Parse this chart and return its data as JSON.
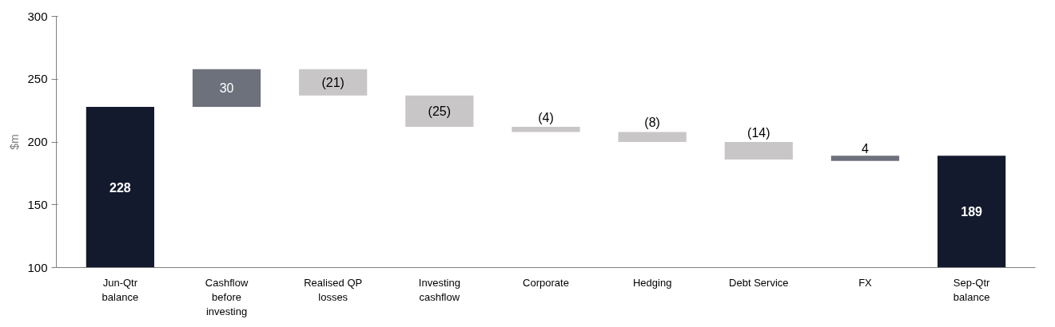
{
  "chart_data": {
    "type": "bar",
    "ylabel": "$m",
    "categories": [
      "Jun-Qtr\nbalance",
      "Cashflow\nbefore\ninvesting",
      "Realised QP\nlosses",
      "Investing\ncashflow",
      "Corporate",
      "Hedging",
      "Debt Service",
      "FX",
      "Sep-Qtr\nbalance"
    ],
    "values": [
      228,
      30,
      -21,
      -25,
      -4,
      -8,
      -14,
      4,
      189
    ],
    "base": [
      0,
      228,
      258,
      237,
      212,
      208,
      200,
      185,
      0
    ],
    "colors": [
      "#141a2e",
      "#6d717c",
      "#c8c6c6",
      "#c8c6c6",
      "#c8c6c6",
      "#c8c6c6",
      "#c8c6c6",
      "#6d717c",
      "#141a2e"
    ],
    "value_labels": [
      "228",
      "30",
      "(21)",
      "(25)",
      "(4)",
      "(8)",
      "(14)",
      "4",
      "189"
    ],
    "ylim": [
      100,
      300
    ],
    "yticks": [
      100,
      150,
      200,
      250,
      300
    ],
    "grid": false
  }
}
